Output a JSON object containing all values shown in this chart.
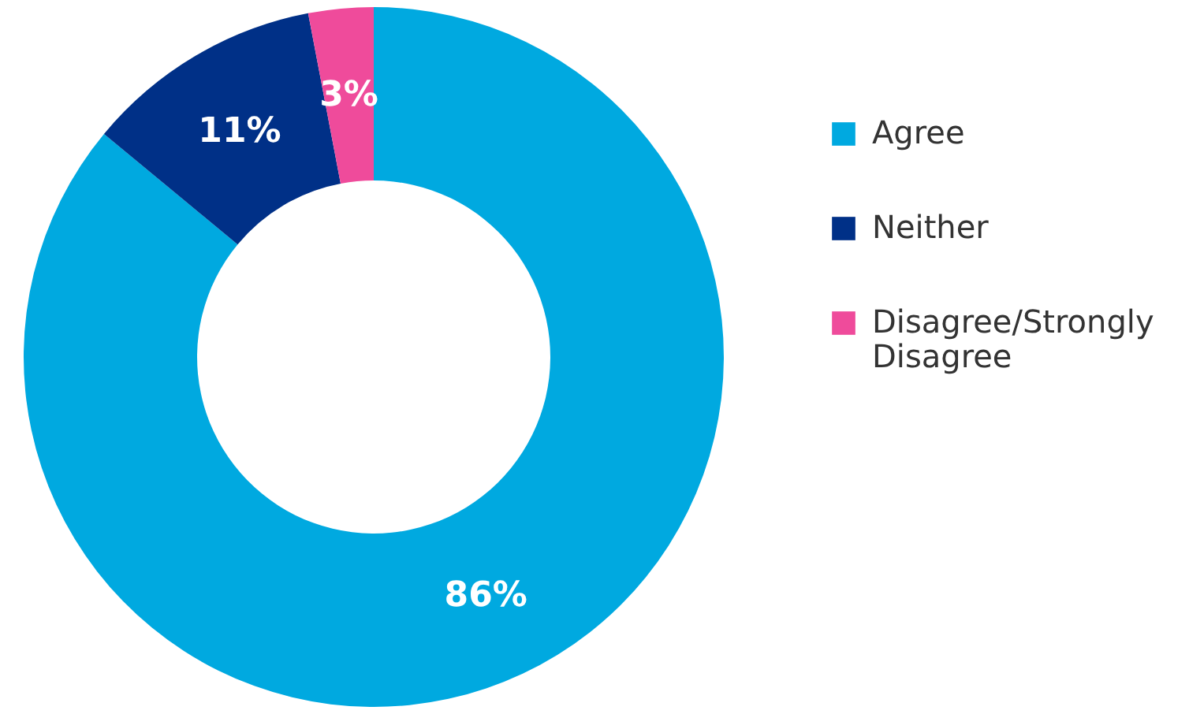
{
  "chart_data": {
    "type": "donut",
    "categories": [
      "Agree",
      "Neither",
      "Disagree/Strongly Disagree"
    ],
    "values": [
      86,
      11,
      3
    ],
    "colors": [
      "#00a9e0",
      "#003087",
      "#ef4b9b"
    ],
    "value_labels": [
      "86%",
      "11%",
      "3%"
    ],
    "legend": "right"
  }
}
